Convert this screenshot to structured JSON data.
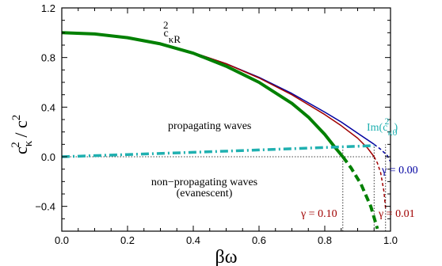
{
  "chart_data": {
    "type": "line",
    "xlabel": "βω",
    "ylabel": {
      "base": "c",
      "sup": "2",
      "sub": "κ",
      "rest": " / c",
      "sup2": "2"
    },
    "xlim": [
      0,
      1.0
    ],
    "ylim": [
      -0.6,
      1.2
    ],
    "xticks": [
      0.0,
      0.2,
      0.4,
      0.6,
      0.8,
      1.0
    ],
    "xtick_labels": [
      "0.0",
      "0.2",
      "0.4",
      "0.6",
      "0.8",
      "1.0"
    ],
    "yticks": [
      -0.4,
      0.0,
      0.4,
      0.8,
      1.2
    ],
    "ytick_labels": [
      "−0.4",
      "0.0",
      "0.4",
      "0.8",
      "1.2"
    ],
    "grid": false,
    "series": [
      {
        "color": "#0000a0",
        "style": "solid",
        "x": [
          0.0,
          0.1,
          0.2,
          0.3,
          0.4,
          0.5,
          0.6,
          0.7,
          0.8,
          0.85,
          0.9,
          0.95
        ],
        "y": [
          1.0,
          0.99,
          0.96,
          0.91,
          0.84,
          0.75,
          0.64,
          0.51,
          0.36,
          0.28,
          0.19,
          0.1
        ]
      },
      {
        "color": "#0000a0",
        "style": "dashed",
        "x": [
          0.95,
          0.97,
          0.99,
          1.0
        ],
        "y": [
          0.1,
          0.06,
          0.01,
          -0.04
        ]
      },
      {
        "color": "#a00000",
        "style": "solid",
        "x": [
          0.0,
          0.1,
          0.2,
          0.3,
          0.4,
          0.5,
          0.6,
          0.7,
          0.8,
          0.85,
          0.9,
          0.93,
          0.95
        ],
        "y": [
          1.0,
          0.99,
          0.96,
          0.91,
          0.84,
          0.75,
          0.635,
          0.5,
          0.34,
          0.25,
          0.15,
          0.07,
          0.0
        ]
      },
      {
        "color": "#a00000",
        "style": "dashed",
        "x": [
          0.95,
          0.96,
          0.97,
          0.98,
          0.985
        ],
        "y": [
          0.0,
          -0.05,
          -0.13,
          -0.28,
          -0.42
        ]
      },
      {
        "color": "#008000",
        "style": "solid",
        "x": [
          0.0,
          0.1,
          0.2,
          0.3,
          0.4,
          0.5,
          0.6,
          0.7,
          0.75,
          0.8,
          0.83,
          0.855
        ],
        "y": [
          1.0,
          0.99,
          0.96,
          0.91,
          0.835,
          0.73,
          0.6,
          0.43,
          0.32,
          0.18,
          0.08,
          0.0
        ]
      },
      {
        "color": "#008000",
        "style": "dashed",
        "x": [
          0.855,
          0.88,
          0.91,
          0.94,
          0.96
        ],
        "y": [
          0.0,
          -0.09,
          -0.22,
          -0.4,
          -0.58
        ]
      },
      {
        "color": "#20b0b0",
        "style": "dashdot",
        "x": [
          0.0,
          0.2,
          0.4,
          0.6,
          0.8,
          0.95
        ],
        "y": [
          0.0,
          0.018,
          0.036,
          0.055,
          0.075,
          0.09
        ]
      }
    ],
    "guides": [
      {
        "x": 0.855,
        "y_from": -0.6,
        "y_to": 0.08
      },
      {
        "x": 0.95,
        "y_from": -0.6,
        "y_to": 0.09
      },
      {
        "x": 0.985,
        "y_from": -0.6,
        "y_to": 0.1
      },
      {
        "y": 0.0,
        "x_from": 0.0,
        "x_to": 0.95
      }
    ],
    "annotations": {
      "c_kR": {
        "base": "c",
        "sup": "2",
        "sub": "κR"
      },
      "im_label": {
        "pre": "Im(c",
        "sup": "2",
        "sub": "κ0",
        "post": ")"
      },
      "propagating": "propagating waves",
      "non_propagating_1": "non−propagating waves",
      "non_propagating_2": "(evanescent)",
      "gamma_000": "γ = 0.00",
      "gamma_001": "γ = 0.01",
      "gamma_010": "γ = 0.10"
    },
    "colors": {
      "blue": "#0000a0",
      "red": "#a00000",
      "green": "#008000",
      "teal": "#20b0b0"
    }
  }
}
